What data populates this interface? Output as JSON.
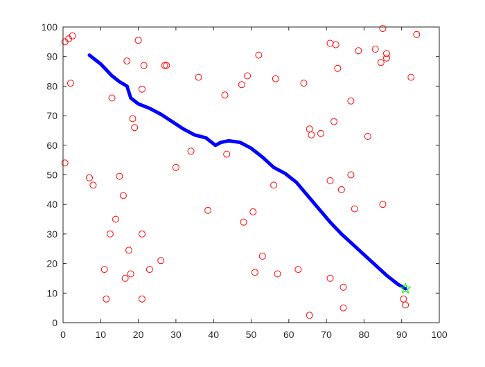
{
  "chart_data": {
    "type": "scatter",
    "title": "",
    "xlabel": "",
    "ylabel": "",
    "xlim": [
      0,
      100
    ],
    "ylim": [
      0,
      100
    ],
    "x_ticks": [
      "0",
      "10",
      "20",
      "30",
      "40",
      "50",
      "60",
      "70",
      "80",
      "90",
      "100"
    ],
    "y_ticks": [
      "0",
      "10",
      "20",
      "30",
      "40",
      "50",
      "60",
      "70",
      "80",
      "90",
      "100"
    ],
    "grid": false,
    "legend": "none",
    "series": [
      {
        "kind": "scatter",
        "marker": "circle",
        "color": "#ff0000",
        "points": [
          [
            0.5,
            95
          ],
          [
            1.5,
            96
          ],
          [
            2.5,
            97
          ],
          [
            2,
            81
          ],
          [
            0.5,
            54
          ],
          [
            7,
            49
          ],
          [
            8,
            46.5
          ],
          [
            11,
            18
          ],
          [
            11.5,
            8
          ],
          [
            12.5,
            30
          ],
          [
            13,
            76
          ],
          [
            14,
            35
          ],
          [
            15,
            49.5
          ],
          [
            16,
            43
          ],
          [
            16.5,
            15
          ],
          [
            17,
            88.5
          ],
          [
            17.5,
            24.5
          ],
          [
            18,
            16.5
          ],
          [
            18.5,
            69
          ],
          [
            19,
            66
          ],
          [
            20,
            95.5
          ],
          [
            21,
            79
          ],
          [
            21.5,
            87
          ],
          [
            21,
            30
          ],
          [
            21,
            8
          ],
          [
            23,
            18
          ],
          [
            26,
            21
          ],
          [
            27,
            87
          ],
          [
            27.5,
            87
          ],
          [
            30,
            52.5
          ],
          [
            34,
            58
          ],
          [
            36,
            83
          ],
          [
            38.5,
            38
          ],
          [
            43,
            77
          ],
          [
            43.5,
            57
          ],
          [
            47.5,
            80.5
          ],
          [
            48,
            34
          ],
          [
            49,
            83.5
          ],
          [
            50.5,
            37.5
          ],
          [
            51,
            17
          ],
          [
            52,
            90.5
          ],
          [
            53,
            22.5
          ],
          [
            56,
            46.5
          ],
          [
            56.5,
            82.5
          ],
          [
            57,
            16.5
          ],
          [
            62.5,
            18
          ],
          [
            64,
            81
          ],
          [
            65.5,
            65.5
          ],
          [
            66,
            63.5
          ],
          [
            65.5,
            2.5
          ],
          [
            68.5,
            64
          ],
          [
            71,
            94.5
          ],
          [
            71,
            48
          ],
          [
            71,
            15
          ],
          [
            72,
            68
          ],
          [
            72.5,
            94
          ],
          [
            73,
            86
          ],
          [
            74,
            45
          ],
          [
            74.5,
            12
          ],
          [
            74.5,
            5
          ],
          [
            76.5,
            75
          ],
          [
            76.5,
            50
          ],
          [
            77.5,
            38.5
          ],
          [
            78.5,
            92
          ],
          [
            81,
            63
          ],
          [
            83,
            92.5
          ],
          [
            84.5,
            88
          ],
          [
            85,
            99.5
          ],
          [
            85,
            40
          ],
          [
            86,
            91
          ],
          [
            86,
            89.5
          ],
          [
            90.5,
            8
          ],
          [
            91,
            6
          ],
          [
            92.5,
            83
          ],
          [
            94,
            97.5
          ]
        ]
      },
      {
        "kind": "line",
        "color": "#0000ff",
        "points": [
          [
            7,
            90.5
          ],
          [
            10,
            87.5
          ],
          [
            13,
            83.5
          ],
          [
            15,
            81.5
          ],
          [
            17,
            80
          ],
          [
            18,
            76
          ],
          [
            20,
            74
          ],
          [
            23,
            72.5
          ],
          [
            26,
            70.5
          ],
          [
            29,
            68
          ],
          [
            32,
            65.5
          ],
          [
            35,
            63.5
          ],
          [
            38,
            62.5
          ],
          [
            40.5,
            60
          ],
          [
            42,
            61
          ],
          [
            44,
            61.5
          ],
          [
            47,
            61
          ],
          [
            50,
            59
          ],
          [
            53,
            56
          ],
          [
            56,
            52.5
          ],
          [
            59,
            50.5
          ],
          [
            62,
            47.5
          ],
          [
            65,
            43
          ],
          [
            68,
            38.5
          ],
          [
            71,
            34
          ],
          [
            74,
            30
          ],
          [
            77,
            26.5
          ],
          [
            80,
            23
          ],
          [
            83,
            19.5
          ],
          [
            86,
            16
          ],
          [
            89,
            13
          ],
          [
            91,
            11.5
          ]
        ]
      },
      {
        "kind": "marker",
        "marker": "star",
        "color": "#00ff00",
        "points": [
          [
            91,
            11.5
          ]
        ]
      }
    ]
  }
}
